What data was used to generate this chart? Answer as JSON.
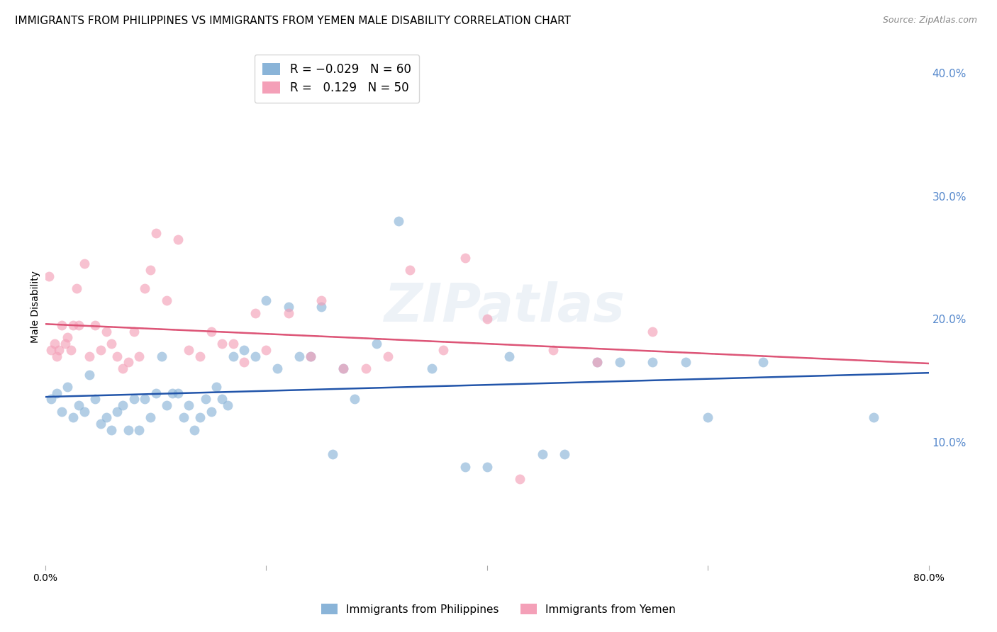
{
  "title": "IMMIGRANTS FROM PHILIPPINES VS IMMIGRANTS FROM YEMEN MALE DISABILITY CORRELATION CHART",
  "source": "Source: ZipAtlas.com",
  "ylabel": "Male Disability",
  "watermark": "ZIPatlas",
  "philippines_color": "#8ab4d8",
  "yemen_color": "#f4a0b8",
  "philippines_line_color": "#2255aa",
  "yemen_line_color": "#dd5577",
  "background_color": "#ffffff",
  "grid_color": "#cccccc",
  "xlim": [
    0,
    80
  ],
  "ylim": [
    0,
    42
  ],
  "right_yticks": [
    10.0,
    20.0,
    30.0,
    40.0
  ],
  "xtick_positions": [
    0,
    20,
    40,
    60,
    80
  ],
  "title_fontsize": 11,
  "philippines_x": [
    0.5,
    1.0,
    1.5,
    2.0,
    2.5,
    3.0,
    3.5,
    4.0,
    4.5,
    5.0,
    5.5,
    6.0,
    6.5,
    7.0,
    7.5,
    8.0,
    8.5,
    9.0,
    9.5,
    10.0,
    10.5,
    11.0,
    11.5,
    12.0,
    12.5,
    13.0,
    13.5,
    14.0,
    14.5,
    15.0,
    15.5,
    16.0,
    16.5,
    17.0,
    18.0,
    19.0,
    20.0,
    21.0,
    22.0,
    23.0,
    24.0,
    25.0,
    26.0,
    27.0,
    28.0,
    30.0,
    32.0,
    35.0,
    38.0,
    40.0,
    42.0,
    45.0,
    47.0,
    50.0,
    52.0,
    55.0,
    58.0,
    60.0,
    65.0,
    75.0
  ],
  "philippines_y": [
    13.5,
    14.0,
    12.5,
    14.5,
    12.0,
    13.0,
    12.5,
    15.5,
    13.5,
    11.5,
    12.0,
    11.0,
    12.5,
    13.0,
    11.0,
    13.5,
    11.0,
    13.5,
    12.0,
    14.0,
    17.0,
    13.0,
    14.0,
    14.0,
    12.0,
    13.0,
    11.0,
    12.0,
    13.5,
    12.5,
    14.5,
    13.5,
    13.0,
    17.0,
    17.5,
    17.0,
    21.5,
    16.0,
    21.0,
    17.0,
    17.0,
    21.0,
    9.0,
    16.0,
    13.5,
    18.0,
    28.0,
    16.0,
    8.0,
    8.0,
    17.0,
    9.0,
    9.0,
    16.5,
    16.5,
    16.5,
    16.5,
    12.0,
    16.5,
    12.0
  ],
  "yemen_x": [
    0.3,
    0.5,
    0.8,
    1.0,
    1.2,
    1.5,
    1.8,
    2.0,
    2.3,
    2.5,
    2.8,
    3.0,
    3.5,
    4.0,
    4.5,
    5.0,
    5.5,
    6.0,
    6.5,
    7.0,
    7.5,
    8.0,
    8.5,
    9.0,
    9.5,
    10.0,
    11.0,
    12.0,
    13.0,
    14.0,
    15.0,
    16.0,
    17.0,
    18.0,
    19.0,
    20.0,
    22.0,
    24.0,
    25.0,
    27.0,
    29.0,
    31.0,
    33.0,
    36.0,
    38.0,
    40.0,
    43.0,
    46.0,
    50.0,
    55.0
  ],
  "yemen_y": [
    23.5,
    17.5,
    18.0,
    17.0,
    17.5,
    19.5,
    18.0,
    18.5,
    17.5,
    19.5,
    22.5,
    19.5,
    24.5,
    17.0,
    19.5,
    17.5,
    19.0,
    18.0,
    17.0,
    16.0,
    16.5,
    19.0,
    17.0,
    22.5,
    24.0,
    27.0,
    21.5,
    26.5,
    17.5,
    17.0,
    19.0,
    18.0,
    18.0,
    16.5,
    20.5,
    17.5,
    20.5,
    17.0,
    21.5,
    16.0,
    16.0,
    17.0,
    24.0,
    17.5,
    25.0,
    20.0,
    7.0,
    17.5,
    16.5,
    19.0
  ]
}
